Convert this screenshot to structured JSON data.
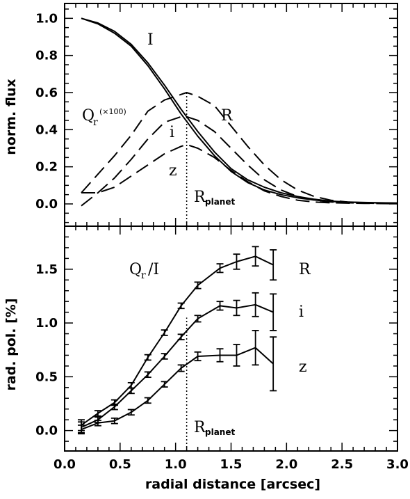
{
  "chart_data": [
    {
      "type": "line",
      "panel": "top",
      "ylabel": "norm. flux",
      "xlim": [
        0.0,
        3.0
      ],
      "ylim": [
        -0.12,
        1.08
      ],
      "x_ticks": [
        0.0,
        0.5,
        1.0,
        1.5,
        2.0,
        2.5,
        3.0
      ],
      "y_ticks": [
        0.0,
        0.2,
        0.4,
        0.6,
        0.8,
        1.0
      ],
      "y_tick_labels": [
        "0.0",
        "0.2",
        "0.4",
        "0.6",
        "0.8",
        "1.0"
      ],
      "series": [
        {
          "name": "I",
          "style": "solid",
          "x": [
            0.15,
            0.3,
            0.45,
            0.6,
            0.75,
            0.9,
            1.05,
            1.2,
            1.35,
            1.5,
            1.65,
            1.8,
            1.95,
            2.1,
            2.25,
            2.4,
            2.55,
            2.7,
            2.85,
            3.0
          ],
          "y": [
            1.0,
            0.975,
            0.93,
            0.86,
            0.76,
            0.64,
            0.51,
            0.39,
            0.28,
            0.19,
            0.13,
            0.09,
            0.06,
            0.04,
            0.025,
            0.015,
            0.01,
            0.008,
            0.006,
            0.005
          ]
        },
        {
          "name": "",
          "style": "solid",
          "x": [
            0.15,
            0.3,
            0.45,
            0.6,
            0.75,
            0.9,
            1.05,
            1.2,
            1.35,
            1.5,
            1.65,
            1.8,
            1.95,
            2.1,
            2.25,
            2.4,
            2.55,
            2.7,
            2.85,
            3.0
          ],
          "y": [
            1.0,
            0.97,
            0.92,
            0.85,
            0.745,
            0.62,
            0.485,
            0.365,
            0.26,
            0.175,
            0.115,
            0.075,
            0.05,
            0.033,
            0.021,
            0.013,
            0.009,
            0.007,
            0.005,
            0.004
          ]
        },
        {
          "name": "R",
          "style": "dashed",
          "x": [
            0.15,
            0.3,
            0.45,
            0.6,
            0.75,
            0.9,
            1.05,
            1.1,
            1.2,
            1.35,
            1.5,
            1.65,
            1.8,
            1.95,
            2.1,
            2.25,
            2.4,
            2.55,
            2.7,
            2.85,
            3.0
          ],
          "y": [
            0.06,
            0.16,
            0.26,
            0.37,
            0.5,
            0.56,
            0.59,
            0.6,
            0.58,
            0.53,
            0.42,
            0.31,
            0.21,
            0.13,
            0.075,
            0.04,
            0.02,
            0.01,
            0.006,
            0.004,
            0.003
          ]
        },
        {
          "name": "i",
          "style": "dashed",
          "x": [
            0.15,
            0.3,
            0.45,
            0.6,
            0.75,
            0.9,
            1.05,
            1.1,
            1.2,
            1.35,
            1.5,
            1.65,
            1.8,
            1.95,
            2.1,
            2.25,
            2.4,
            2.55,
            2.7,
            2.85,
            3.0
          ],
          "y": [
            -0.01,
            0.06,
            0.14,
            0.24,
            0.35,
            0.44,
            0.47,
            0.47,
            0.45,
            0.39,
            0.3,
            0.21,
            0.13,
            0.075,
            0.04,
            0.02,
            0.01,
            0.006,
            0.004,
            0.003,
            0.002
          ]
        },
        {
          "name": "z",
          "style": "dashed",
          "x": [
            0.15,
            0.3,
            0.45,
            0.6,
            0.75,
            0.9,
            1.05,
            1.1,
            1.2,
            1.35,
            1.5,
            1.65,
            1.8,
            1.95,
            2.1,
            2.25,
            2.4,
            2.55,
            2.7,
            2.85,
            3.0
          ],
          "y": [
            0.06,
            0.06,
            0.09,
            0.15,
            0.21,
            0.27,
            0.31,
            0.32,
            0.3,
            0.25,
            0.18,
            0.12,
            0.07,
            0.04,
            0.02,
            0.01,
            0.006,
            0.004,
            0.003,
            0.002,
            0.001
          ]
        }
      ],
      "vline": {
        "x": 1.1,
        "y_from": -0.12,
        "y_to": 0.61,
        "style": "dotted"
      },
      "annotations": {
        "I": "I",
        "R": "R",
        "i": "i",
        "z": "z",
        "qr_main": "Q",
        "qr_sub": "r",
        "qr_scale": "(×100)",
        "rplanet_main": "R",
        "rplanet_sub": "planet"
      }
    },
    {
      "type": "line",
      "panel": "bottom",
      "xlabel": "radial distance [arcsec]",
      "ylabel": "rad. pol. [%]",
      "xlim": [
        0.0,
        3.0
      ],
      "ylim": [
        -0.19,
        1.9
      ],
      "x_ticks": [
        0.0,
        0.5,
        1.0,
        1.5,
        2.0,
        2.5,
        3.0
      ],
      "x_tick_labels": [
        "0.0",
        "0.5",
        "1.0",
        "1.5",
        "2.0",
        "2.5",
        "3.0"
      ],
      "y_ticks": [
        0.0,
        0.5,
        1.0,
        1.5
      ],
      "y_tick_labels": [
        "0.0",
        "0.5",
        "1.0",
        "1.5"
      ],
      "series": [
        {
          "name": "R",
          "x": [
            0.15,
            0.3,
            0.45,
            0.6,
            0.75,
            0.9,
            1.05,
            1.2,
            1.4,
            1.55,
            1.72,
            1.88
          ],
          "y": [
            0.05,
            0.16,
            0.26,
            0.42,
            0.68,
            0.91,
            1.16,
            1.35,
            1.51,
            1.57,
            1.62,
            1.54
          ],
          "err": [
            0.05,
            0.025,
            0.025,
            0.025,
            0.025,
            0.025,
            0.025,
            0.03,
            0.04,
            0.07,
            0.09,
            0.14
          ]
        },
        {
          "name": "i",
          "x": [
            0.15,
            0.3,
            0.45,
            0.6,
            0.75,
            0.9,
            1.05,
            1.2,
            1.4,
            1.55,
            1.72,
            1.88
          ],
          "y": [
            0.03,
            0.1,
            0.22,
            0.37,
            0.52,
            0.69,
            0.87,
            1.04,
            1.16,
            1.14,
            1.17,
            1.1
          ],
          "err": [
            0.05,
            0.025,
            0.025,
            0.025,
            0.025,
            0.025,
            0.025,
            0.03,
            0.04,
            0.07,
            0.11,
            0.17
          ]
        },
        {
          "name": "z",
          "x": [
            0.15,
            0.3,
            0.45,
            0.6,
            0.75,
            0.9,
            1.05,
            1.2,
            1.4,
            1.55,
            1.72,
            1.88
          ],
          "y": [
            0.01,
            0.07,
            0.09,
            0.17,
            0.28,
            0.43,
            0.58,
            0.69,
            0.7,
            0.7,
            0.77,
            0.62
          ],
          "err": [
            0.04,
            0.025,
            0.025,
            0.025,
            0.025,
            0.025,
            0.03,
            0.04,
            0.06,
            0.1,
            0.16,
            0.25
          ]
        }
      ],
      "vline": {
        "x": 1.1,
        "y_from": -0.19,
        "y_to": 1.05,
        "style": "dotted"
      },
      "annotations": {
        "title_main": "Q",
        "title_sub": "r",
        "title_rest": "/I",
        "R": "R",
        "i": "i",
        "z": "z",
        "rplanet_main": "R",
        "rplanet_sub": "planet"
      }
    }
  ]
}
